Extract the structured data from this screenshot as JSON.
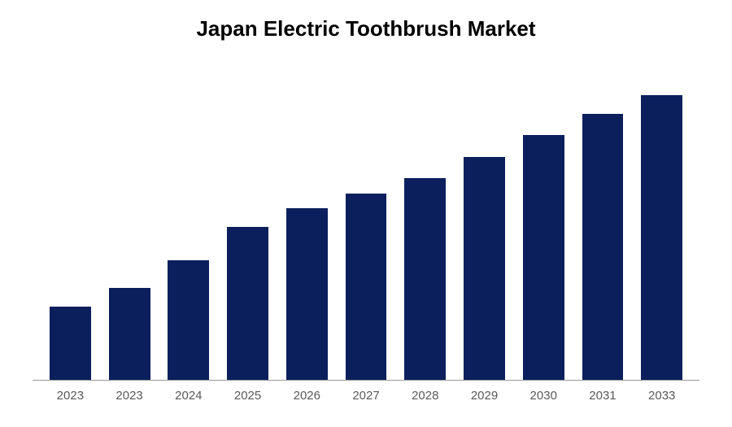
{
  "chart": {
    "type": "bar",
    "title": "Japan Electric Toothbrush Market",
    "title_fontsize": 26,
    "title_color": "#000000",
    "title_weight": "bold",
    "categories": [
      "2023",
      "2023",
      "2024",
      "2025",
      "2026",
      "2027",
      "2028",
      "2029",
      "2030",
      "2031",
      "2033"
    ],
    "values": [
      24,
      30,
      39,
      50,
      56,
      61,
      66,
      73,
      80,
      87,
      93
    ],
    "ylim": [
      0,
      100
    ],
    "bar_color": "#0b1f5c",
    "background_color": "#ffffff",
    "axis_line_color": "#999999",
    "label_color": "#595959",
    "label_fontsize": 15,
    "bar_width": 0.7
  }
}
